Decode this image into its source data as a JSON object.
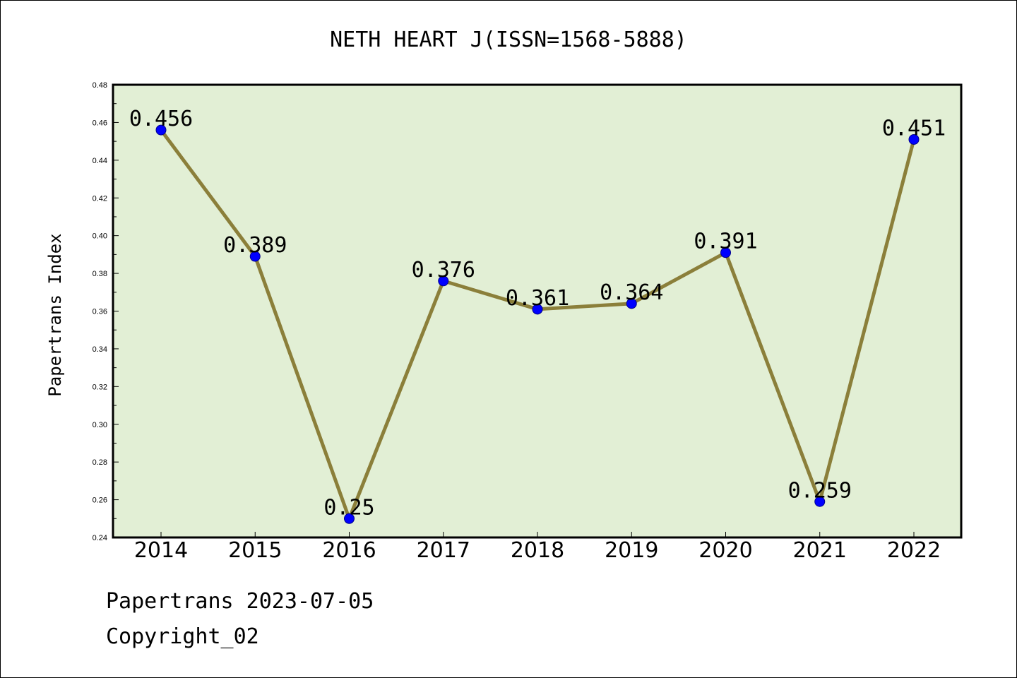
{
  "chart_data": {
    "type": "line",
    "title": "NETH HEART J(ISSN=1568-5888)",
    "xlabel": "",
    "ylabel": "Papertrans Index",
    "categories": [
      "2014",
      "2015",
      "2016",
      "2017",
      "2018",
      "2019",
      "2020",
      "2021",
      "2022"
    ],
    "series": [
      {
        "values": [
          0.456,
          0.389,
          0.25,
          0.376,
          0.361,
          0.364,
          0.391,
          0.259,
          0.451
        ],
        "labels": [
          "0.456",
          "0.389",
          "0.25",
          "0.376",
          "0.361",
          "0.364",
          "0.391",
          "0.259",
          "0.451"
        ]
      }
    ],
    "ylim": [
      0.24,
      0.48
    ],
    "yticks": [
      "0.24",
      "0.26",
      "0.28",
      "0.30",
      "0.32",
      "0.34",
      "0.36",
      "0.38",
      "0.40",
      "0.42",
      "0.44",
      "0.46",
      "0.48"
    ],
    "grid": false,
    "colors": {
      "plot_background": "#e2efd5",
      "line": "#8b7f3a",
      "marker": "#0000ff"
    }
  },
  "footer": {
    "line1": "Papertrans 2023-07-05",
    "line2": "Copyright_02"
  }
}
